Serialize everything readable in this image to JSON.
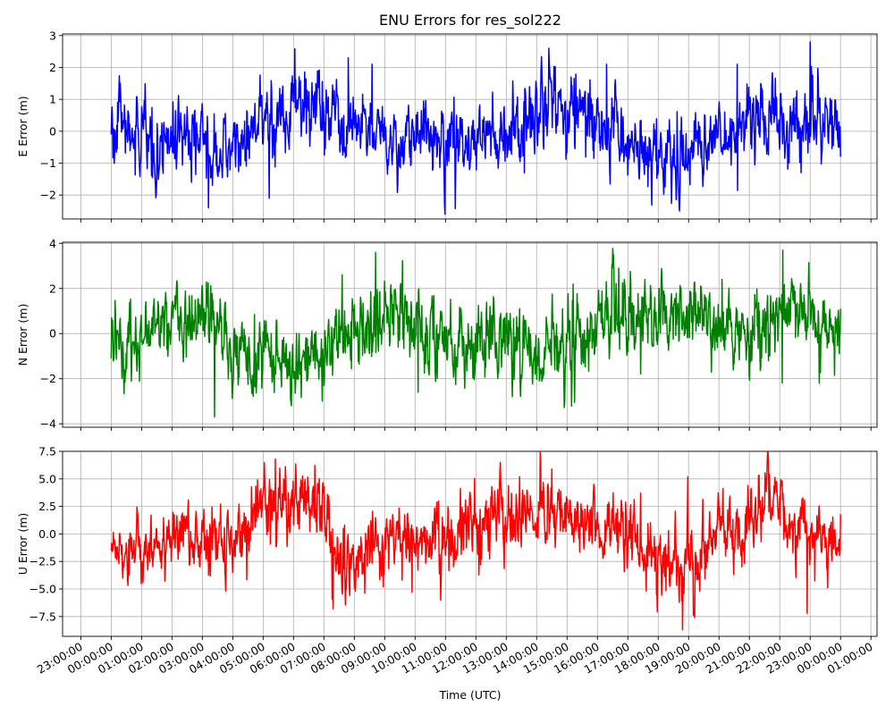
{
  "title": "ENU Errors for res_sol222",
  "xlabel": "Time (UTC)",
  "x_ticks": [
    "23:00:00",
    "00:00:00",
    "01:00:00",
    "02:00:00",
    "03:00:00",
    "04:00:00",
    "05:00:00",
    "06:00:00",
    "07:00:00",
    "08:00:00",
    "09:00:00",
    "10:00:00",
    "11:00:00",
    "12:00:00",
    "13:00:00",
    "14:00:00",
    "15:00:00",
    "16:00:00",
    "17:00:00",
    "18:00:00",
    "19:00:00",
    "20:00:00",
    "21:00:00",
    "22:00:00",
    "23:00:00",
    "00:00:00",
    "01:00:00"
  ],
  "chart_data": [
    {
      "type": "line",
      "ylabel": "E Error (m)",
      "color": "#0000ff",
      "ylim": [
        -2.75,
        3.05
      ],
      "yticks": [
        -2,
        -1,
        0,
        1,
        2,
        3
      ],
      "ytick_labels": [
        "−2",
        "−1",
        "0",
        "1",
        "2",
        "3"
      ],
      "grid": true,
      "x_hours": [
        0,
        0.5,
        1,
        1.5,
        2,
        2.5,
        3,
        3.5,
        4,
        4.5,
        5,
        5.5,
        6,
        6.5,
        7,
        7.5,
        8,
        8.5,
        9,
        9.5,
        10,
        10.5,
        11,
        11.5,
        12,
        12.5,
        13,
        13.5,
        14,
        14.5,
        15,
        15.5,
        16,
        16.5,
        17,
        17.5,
        18,
        18.5,
        19,
        19.5,
        20,
        20.5,
        21,
        21.5,
        22,
        22.5,
        23,
        23.5,
        24
      ],
      "trend": [
        0.2,
        0.1,
        -0.2,
        -0.3,
        -0.35,
        -0.4,
        -0.4,
        -0.5,
        -0.6,
        -0.3,
        0.3,
        0.5,
        0.7,
        0.8,
        0.6,
        0.2,
        0.0,
        -0.1,
        -0.2,
        -0.3,
        -0.1,
        0.0,
        -0.2,
        -0.2,
        -0.1,
        -0.2,
        -0.1,
        0.3,
        0.8,
        1.0,
        0.8,
        0.6,
        0.3,
        0.1,
        -0.3,
        -0.6,
        -0.7,
        -0.8,
        -0.6,
        -0.4,
        -0.1,
        0.1,
        0.3,
        0.4,
        0.4,
        0.3,
        0.2,
        0.2,
        0.0
      ],
      "spread": [
        0.6,
        0.55,
        0.55,
        0.6,
        0.6,
        0.55,
        0.55,
        0.5,
        0.5,
        0.55,
        0.55,
        0.6,
        0.65,
        0.7,
        0.6,
        0.55,
        0.5,
        0.55,
        0.55,
        0.55,
        0.6,
        0.6,
        0.6,
        0.6,
        0.55,
        0.55,
        0.55,
        0.6,
        0.7,
        0.7,
        0.65,
        0.6,
        0.55,
        0.55,
        0.6,
        0.6,
        0.6,
        0.6,
        0.6,
        0.55,
        0.55,
        0.6,
        0.6,
        0.6,
        0.65,
        0.7,
        0.6,
        0.55,
        0.5
      ],
      "points": [
        [
          0,
          -0.1
        ],
        [
          3.2,
          -2.4
        ],
        [
          5.2,
          -2.1
        ],
        [
          7.8,
          2.3
        ],
        [
          14.4,
          2.6
        ],
        [
          16.3,
          2.1
        ],
        [
          18.7,
          -2.5
        ],
        [
          20.6,
          2.1
        ],
        [
          23.0,
          2.8
        ],
        [
          24,
          -0.8
        ]
      ]
    },
    {
      "type": "line",
      "ylabel": "N Error (m)",
      "color": "#008000",
      "ylim": [
        -4.15,
        4.05
      ],
      "yticks": [
        -4,
        -2,
        0,
        2,
        4
      ],
      "ytick_labels": [
        "−4",
        "−2",
        "0",
        "2",
        "4"
      ],
      "grid": true,
      "x_hours": [
        0,
        0.5,
        1,
        1.5,
        2,
        2.5,
        3,
        3.5,
        4,
        4.5,
        5,
        5.5,
        6,
        6.5,
        7,
        7.5,
        8,
        8.5,
        9,
        9.5,
        10,
        10.5,
        11,
        11.5,
        12,
        12.5,
        13,
        13.5,
        14,
        14.5,
        15,
        15.5,
        16,
        16.5,
        17,
        17.5,
        18,
        18.5,
        19,
        19.5,
        20,
        20.5,
        21,
        21.5,
        22,
        22.5,
        23,
        23.5,
        24
      ],
      "trend": [
        -0.4,
        -0.5,
        0.2,
        0.5,
        0.8,
        0.8,
        0.7,
        0.5,
        -0.9,
        -1.2,
        -1.1,
        -1.0,
        -1.2,
        -0.9,
        -0.4,
        0.0,
        0.1,
        0.3,
        0.9,
        1.0,
        0.5,
        0.0,
        -0.6,
        -0.8,
        -0.8,
        -0.7,
        -0.5,
        -0.6,
        -0.7,
        -0.6,
        -0.5,
        -0.1,
        0.5,
        0.6,
        0.7,
        0.6,
        0.5,
        0.6,
        0.8,
        0.9,
        0.6,
        0.0,
        -0.4,
        0.4,
        1.0,
        1.1,
        0.8,
        0.5,
        0.3
      ],
      "spread": [
        0.8,
        0.8,
        0.8,
        0.8,
        0.8,
        0.8,
        0.8,
        0.75,
        0.8,
        0.9,
        0.85,
        0.8,
        0.8,
        0.85,
        0.85,
        0.8,
        0.8,
        0.85,
        0.9,
        0.9,
        0.9,
        0.85,
        0.8,
        0.8,
        0.8,
        0.8,
        0.8,
        0.8,
        0.8,
        0.8,
        0.8,
        0.85,
        0.9,
        0.9,
        0.9,
        0.85,
        0.85,
        0.85,
        0.9,
        0.9,
        0.85,
        0.8,
        0.8,
        0.85,
        0.9,
        0.95,
        0.9,
        0.85,
        0.8
      ],
      "points": [
        [
          0,
          -1.1
        ],
        [
          3.4,
          -3.7
        ],
        [
          7.6,
          2.6
        ],
        [
          8.7,
          3.6
        ],
        [
          10.1,
          -2.6
        ],
        [
          13.2,
          -2.8
        ],
        [
          15.2,
          2.2
        ],
        [
          16.7,
          2.9
        ],
        [
          20.1,
          2.4
        ],
        [
          22.1,
          3.7
        ],
        [
          23.3,
          -2.2
        ],
        [
          24,
          1.1
        ]
      ]
    },
    {
      "type": "line",
      "ylabel": "U Error (m)",
      "color": "#ff0000",
      "ylim": [
        -9.3,
        7.5
      ],
      "yticks": [
        -7.5,
        -5.0,
        -2.5,
        0.0,
        2.5,
        5.0,
        7.5
      ],
      "ytick_labels": [
        "−7.5",
        "−5.0",
        "−2.5",
        "0.0",
        "2.5",
        "5.0",
        "7.5"
      ],
      "grid": true,
      "x_hours": [
        0,
        0.5,
        1,
        1.5,
        2,
        2.5,
        3,
        3.5,
        4,
        4.5,
        5,
        5.5,
        6,
        6.5,
        7,
        7.5,
        8,
        8.5,
        9,
        9.5,
        10,
        10.5,
        11,
        11.5,
        12,
        12.5,
        13,
        13.5,
        14,
        14.5,
        15,
        15.5,
        16,
        16.5,
        17,
        17.5,
        18,
        18.5,
        19,
        19.5,
        20,
        20.5,
        21,
        21.5,
        22,
        22.5,
        23,
        23.5,
        24
      ],
      "trend": [
        -1.0,
        -1.5,
        -1.5,
        -1.3,
        0.0,
        0.2,
        -0.5,
        -1.3,
        -0.6,
        0.5,
        2.5,
        3.2,
        3.0,
        2.5,
        2.2,
        -2.0,
        -2.5,
        -1.5,
        -1.2,
        -0.5,
        -0.8,
        -0.5,
        -0.3,
        0.5,
        1.0,
        1.5,
        1.5,
        2.0,
        2.0,
        2.3,
        1.5,
        1.2,
        1.2,
        0.8,
        -0.5,
        -0.8,
        -2.0,
        -2.5,
        -2.3,
        -1.5,
        -0.5,
        0.3,
        2.0,
        4.0,
        2.5,
        0.5,
        -0.5,
        -1.0,
        -1.2
      ],
      "spread": [
        1.3,
        1.3,
        1.3,
        1.4,
        1.5,
        1.5,
        1.5,
        1.5,
        1.5,
        1.6,
        1.6,
        1.6,
        1.6,
        1.6,
        1.6,
        1.6,
        1.5,
        1.5,
        1.5,
        1.5,
        1.5,
        1.5,
        1.5,
        1.6,
        1.6,
        1.6,
        1.6,
        1.6,
        1.6,
        1.6,
        1.5,
        1.5,
        1.5,
        1.5,
        1.6,
        1.6,
        1.7,
        1.7,
        1.7,
        1.6,
        1.6,
        1.6,
        1.6,
        1.6,
        1.5,
        1.5,
        1.5,
        1.4,
        1.3
      ],
      "points": [
        [
          0,
          -1.5
        ],
        [
          5.4,
          6.8
        ],
        [
          6.7,
          6.2
        ],
        [
          7.3,
          -6.8
        ],
        [
          9.9,
          -5.3
        ],
        [
          14.5,
          5.9
        ],
        [
          18.8,
          -8.7
        ],
        [
          19.2,
          -7.6
        ],
        [
          21.3,
          5.3
        ],
        [
          22.9,
          -7.2
        ],
        [
          24,
          1.8
        ]
      ]
    }
  ]
}
